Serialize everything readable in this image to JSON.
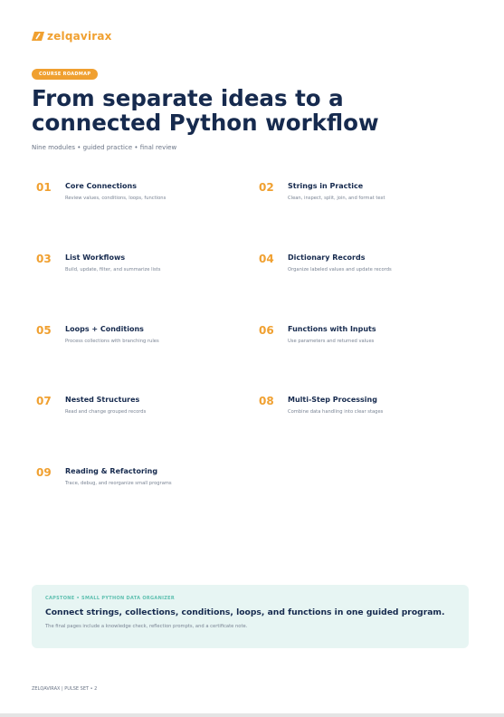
{
  "header": {
    "logo": "zelqavirax",
    "badge": "COURSE ROADMAP",
    "title_lines": [
      "From separate ideas to a",
      "connected Python workflow"
    ],
    "subtitle": "Nine modules • guided practice • final review"
  },
  "modules": [
    {
      "number": "01",
      "title": "Core Connections",
      "description": "Review values, conditions, loops, functions"
    },
    {
      "number": "02",
      "title": "Strings in Practice",
      "description": "Clean, inspect, split, join, and format text"
    },
    {
      "number": "03",
      "title": "List Workflows",
      "description": "Build, update, filter, and summarize lists"
    },
    {
      "number": "04",
      "title": "Dictionary Records",
      "description": "Organize labeled values and update records"
    },
    {
      "number": "05",
      "title": "Loops + Conditions",
      "description": "Process collections with branching rules"
    },
    {
      "number": "06",
      "title": "Functions with Inputs",
      "description": "Use parameters and returned values"
    },
    {
      "number": "07",
      "title": "Nested Structures",
      "description": "Read and change grouped records"
    },
    {
      "number": "08",
      "title": "Multi-Step Processing",
      "description": "Combine data handling into clear stages"
    },
    {
      "number": "09",
      "title": "Reading & Refactoring",
      "description": "Trace, debug, and reorganize small programs"
    }
  ],
  "capstone": {
    "label": "CAPSTONE • SMALL PYTHON DATA ORGANIZER",
    "title": "Connect strings, collections, conditions, loops, and functions in one guided program.",
    "description": "The final pages include a knowledge check, reflection prompts, and a certificate note."
  },
  "footer": "ZELQAVIRAX | PULSE SET • 2"
}
